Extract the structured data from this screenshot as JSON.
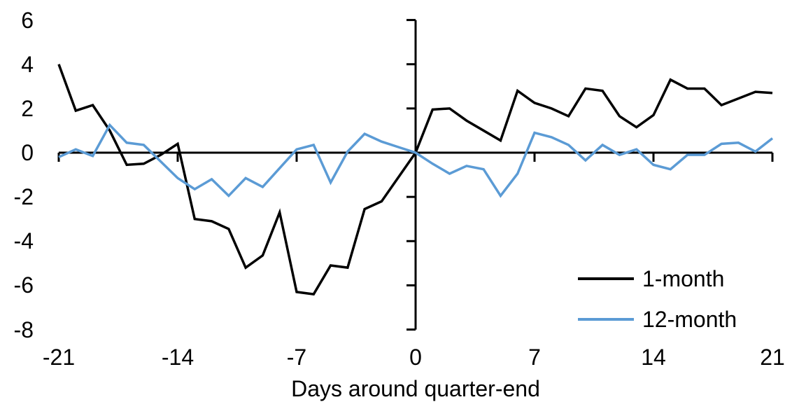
{
  "chart_data": {
    "type": "line",
    "title": "",
    "xlabel": "Days around quarter-end",
    "ylabel": "",
    "xlim": [
      -21,
      21
    ],
    "ylim": [
      -8,
      6
    ],
    "grid": false,
    "legend_position": "bottom-right",
    "xticks": [
      -21,
      -14,
      -7,
      0,
      7,
      14,
      21
    ],
    "yticks": [
      6,
      4,
      2,
      0,
      -2,
      -4,
      -6,
      -8
    ],
    "x": [
      -21,
      -20,
      -19,
      -18,
      -17,
      -16,
      -15,
      -14,
      -13,
      -12,
      -11,
      -10,
      -9,
      -8,
      -7,
      -6,
      -5,
      -4,
      -3,
      -2,
      -1,
      0,
      1,
      2,
      3,
      4,
      5,
      6,
      7,
      8,
      9,
      10,
      11,
      12,
      13,
      14,
      15,
      16,
      17,
      18,
      19,
      20,
      21
    ],
    "series": [
      {
        "name": "1-month",
        "color": "#000000",
        "values": [
          4.0,
          1.9,
          2.15,
          1.0,
          -0.55,
          -0.5,
          -0.1,
          0.4,
          -3.0,
          -3.1,
          -3.45,
          -5.2,
          -4.65,
          -2.7,
          -6.3,
          -6.4,
          -5.1,
          -5.2,
          -2.55,
          -2.2,
          -1.1,
          0.0,
          1.95,
          2.0,
          1.45,
          1.0,
          0.55,
          2.8,
          2.25,
          2.0,
          1.65,
          2.9,
          2.8,
          1.65,
          1.15,
          1.7,
          3.3,
          2.9,
          2.9,
          2.15,
          2.45,
          2.75,
          2.7
        ]
      },
      {
        "name": "12-month",
        "color": "#5B9BD5",
        "values": [
          -0.2,
          0.15,
          -0.15,
          1.25,
          0.45,
          0.35,
          -0.4,
          -1.15,
          -1.65,
          -1.2,
          -1.95,
          -1.15,
          -1.55,
          -0.7,
          0.15,
          0.35,
          -1.35,
          0.05,
          0.85,
          0.5,
          0.25,
          0.0,
          -0.5,
          -0.95,
          -0.6,
          -0.75,
          -1.95,
          -0.95,
          0.9,
          0.7,
          0.35,
          -0.35,
          0.35,
          -0.1,
          0.15,
          -0.55,
          -0.75,
          -0.1,
          -0.1,
          0.4,
          0.45,
          0.05,
          0.65
        ]
      }
    ],
    "axis_color": "#000000"
  }
}
